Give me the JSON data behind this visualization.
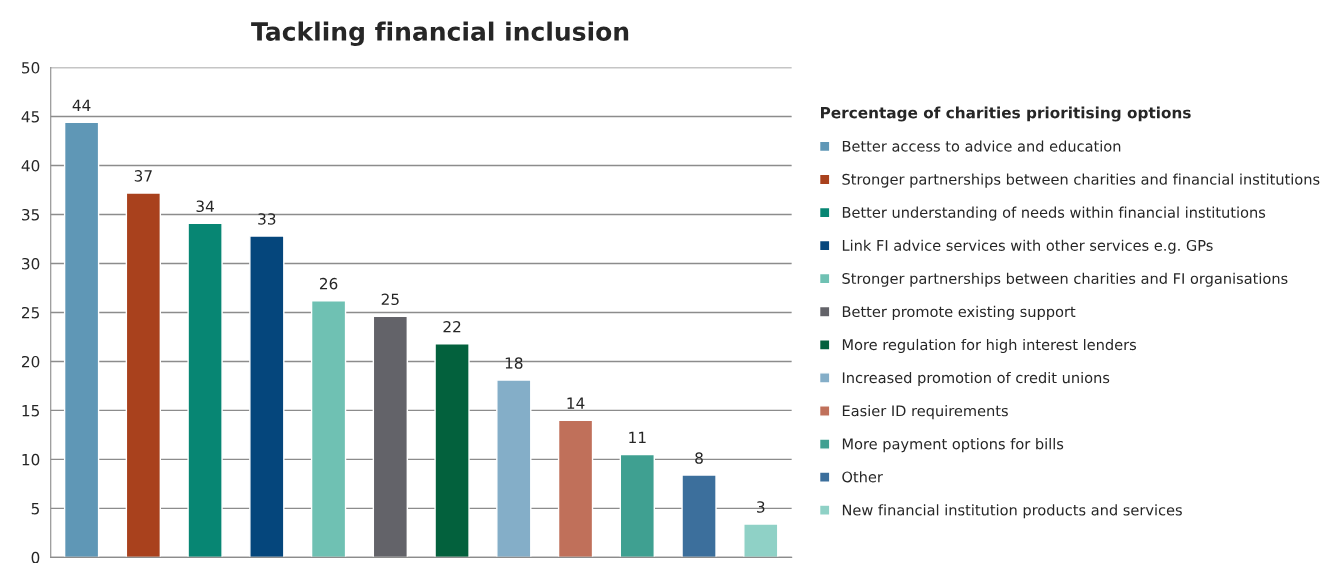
{
  "chart_data": {
    "type": "bar",
    "title": "Tackling financial inclusion",
    "legend_title": "Percentage of charities prioritising options",
    "categories": [
      null,
      null,
      null,
      null,
      null,
      null,
      null,
      null,
      null,
      null,
      null,
      null
    ],
    "series": [
      {
        "name": "Better access to advice and education",
        "color": "#5f97b6",
        "values": [
          44.4,
          null,
          null,
          null,
          null,
          null,
          null,
          null,
          null,
          null,
          null,
          null
        ],
        "value_labels": [
          "44",
          null,
          null,
          null,
          null,
          null,
          null,
          null,
          null,
          null,
          null,
          null
        ]
      },
      {
        "name": "Stronger partnerships between charities and financial institutions",
        "color": "#a9411d",
        "values": [
          null,
          37.2,
          null,
          null,
          null,
          null,
          null,
          null,
          null,
          null,
          null,
          null
        ],
        "value_labels": [
          null,
          "37",
          null,
          null,
          null,
          null,
          null,
          null,
          null,
          null,
          null,
          null
        ]
      },
      {
        "name": "Better understanding of needs within financial institutions",
        "color": "#078673",
        "values": [
          null,
          null,
          34.1,
          null,
          null,
          null,
          null,
          null,
          null,
          null,
          null,
          null
        ],
        "value_labels": [
          null,
          null,
          "34",
          null,
          null,
          null,
          null,
          null,
          null,
          null,
          null,
          null
        ]
      },
      {
        "name": "Link FI advice services with other services e.g. GPs",
        "color": "#05467c",
        "values": [
          null,
          null,
          null,
          32.8,
          null,
          null,
          null,
          null,
          null,
          null,
          null,
          null
        ],
        "value_labels": [
          null,
          null,
          null,
          "33",
          null,
          null,
          null,
          null,
          null,
          null,
          null,
          null
        ]
      },
      {
        "name": "Stronger partnerships between charities and FI organisations",
        "color": "#6fc1b3",
        "values": [
          null,
          null,
          null,
          null,
          26.2,
          null,
          null,
          null,
          null,
          null,
          null,
          null
        ],
        "value_labels": [
          null,
          null,
          null,
          null,
          "26",
          null,
          null,
          null,
          null,
          null,
          null,
          null
        ]
      },
      {
        "name": "Better promote existing support",
        "color": "#636369",
        "values": [
          null,
          null,
          null,
          null,
          null,
          24.6,
          null,
          null,
          null,
          null,
          null,
          null
        ],
        "value_labels": [
          null,
          null,
          null,
          null,
          null,
          "25",
          null,
          null,
          null,
          null,
          null,
          null
        ]
      },
      {
        "name": "More regulation for high interest lenders",
        "color": "#03613d",
        "values": [
          null,
          null,
          null,
          null,
          null,
          null,
          21.8,
          null,
          null,
          null,
          null,
          null
        ],
        "value_labels": [
          null,
          null,
          null,
          null,
          null,
          null,
          "22",
          null,
          null,
          null,
          null,
          null
        ]
      },
      {
        "name": "Increased promotion of credit unions",
        "color": "#84aec8",
        "values": [
          null,
          null,
          null,
          null,
          null,
          null,
          null,
          18.1,
          null,
          null,
          null,
          null
        ],
        "value_labels": [
          null,
          null,
          null,
          null,
          null,
          null,
          null,
          "18",
          null,
          null,
          null,
          null
        ]
      },
      {
        "name": "Easier ID requirements",
        "color": "#c0705a",
        "values": [
          null,
          null,
          null,
          null,
          null,
          null,
          null,
          null,
          14.0,
          null,
          null,
          null
        ],
        "value_labels": [
          null,
          null,
          null,
          null,
          null,
          null,
          null,
          null,
          "14",
          null,
          null,
          null
        ]
      },
      {
        "name": "More payment options for bills",
        "color": "#3fa091",
        "values": [
          null,
          null,
          null,
          null,
          null,
          null,
          null,
          null,
          null,
          10.5,
          null,
          null
        ],
        "value_labels": [
          null,
          null,
          null,
          null,
          null,
          null,
          null,
          null,
          null,
          "11",
          null,
          null
        ]
      },
      {
        "name": "Other",
        "color": "#3c6f9c",
        "values": [
          null,
          null,
          null,
          null,
          null,
          null,
          null,
          null,
          null,
          null,
          8.4,
          null
        ],
        "value_labels": [
          null,
          null,
          null,
          null,
          null,
          null,
          null,
          null,
          null,
          null,
          "8",
          null
        ]
      },
      {
        "name": "New financial institution products and services",
        "color": "#8fd1c6",
        "values": [
          null,
          null,
          null,
          null,
          null,
          null,
          null,
          null,
          null,
          null,
          null,
          3.4
        ],
        "value_labels": [
          null,
          null,
          null,
          null,
          null,
          null,
          null,
          null,
          null,
          null,
          null,
          "3"
        ]
      }
    ],
    "ylim": [
      0,
      50
    ],
    "yticks": [
      0,
      5,
      10,
      15,
      20,
      25,
      30,
      35,
      40,
      45,
      50
    ],
    "grid": "y",
    "legend": "right"
  }
}
